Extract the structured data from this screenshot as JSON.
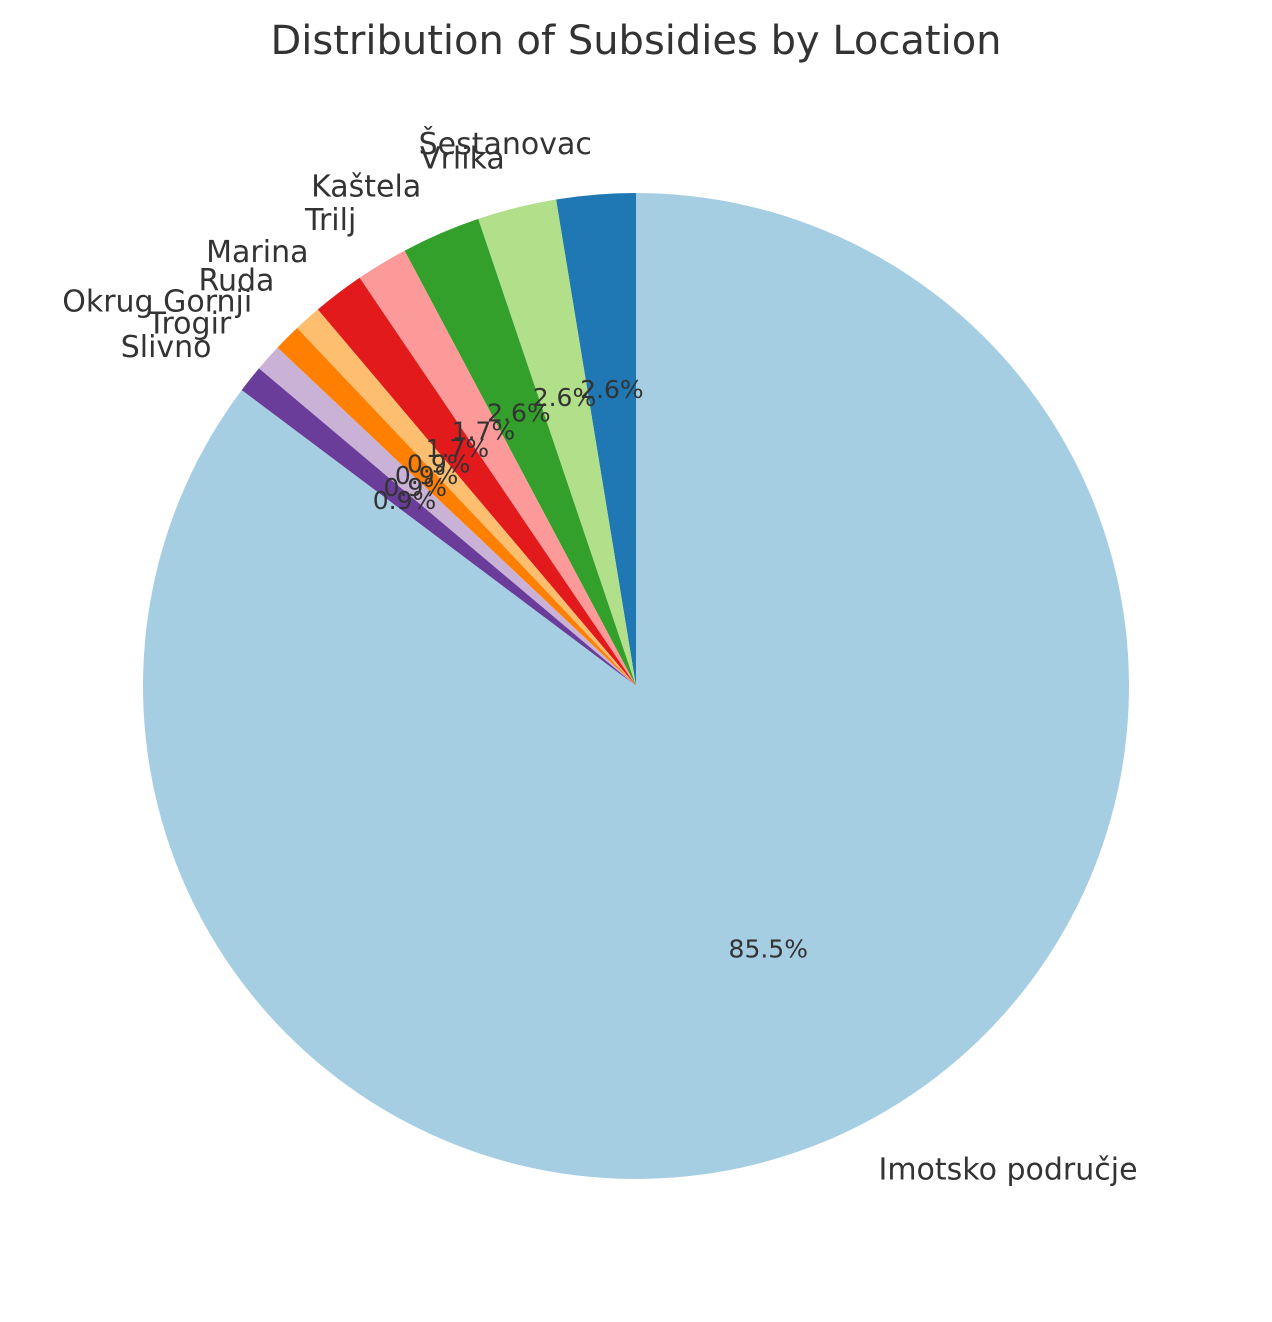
{
  "chart_data": {
    "type": "pie",
    "title": "Distribution of Subsidies by Location",
    "start_angle_deg": 90,
    "direction": "counterclockwise",
    "slices": [
      {
        "label": "Šestanovac",
        "value": 2.6,
        "pct_label": "2.6%",
        "color": "#1f78b4"
      },
      {
        "label": "Vrlika",
        "value": 2.6,
        "pct_label": "2.6%",
        "color": "#b2df8a"
      },
      {
        "label": "Kaštela",
        "value": 2.6,
        "pct_label": "2.6%",
        "color": "#33a02c"
      },
      {
        "label": "Trilj",
        "value": 1.7,
        "pct_label": "1.7%",
        "color": "#fb9a99"
      },
      {
        "label": "Marina",
        "value": 1.7,
        "pct_label": "1.7%",
        "color": "#e31a1c"
      },
      {
        "label": "Ruda",
        "value": 0.9,
        "pct_label": "0.9%",
        "color": "#fdbf6f"
      },
      {
        "label": "Okrug Gornji",
        "value": 0.9,
        "pct_label": "0.9%",
        "color": "#ff7f00"
      },
      {
        "label": "Trogir",
        "value": 0.9,
        "pct_label": "0.9%",
        "color": "#cab2d6"
      },
      {
        "label": "Slivno",
        "value": 0.9,
        "pct_label": "0.9%",
        "color": "#6a3d9a"
      },
      {
        "label": "Imotsko područje",
        "value": 85.5,
        "pct_label": "85.5%",
        "color": "#a6cee3"
      }
    ]
  }
}
